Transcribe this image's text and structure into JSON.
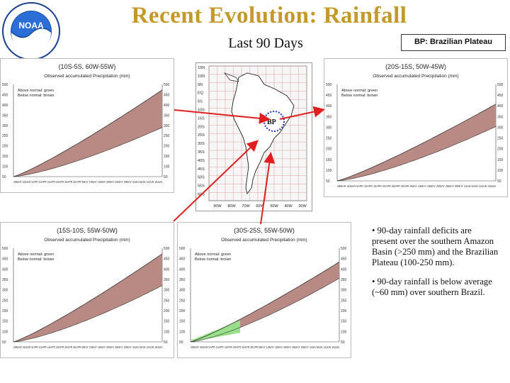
{
  "title": "Recent Evolution: Rainfall",
  "subtitle": "Last 90 Days",
  "legend_box": "BP: Brazilian Plateau",
  "logo_text": "NOAA",
  "map": {
    "label": "BP",
    "lat_labels": [
      "15N",
      "10N",
      "5N",
      "EQ",
      "5S",
      "10S",
      "15S",
      "20S",
      "25S",
      "30S",
      "35S",
      "40S",
      "45S",
      "50S",
      "55S",
      "60S"
    ],
    "lon_labels": [
      "90W",
      "80W",
      "70W",
      "60W",
      "50W",
      "40W",
      "30W"
    ]
  },
  "panels": [
    {
      "region": "(10S-5S, 60W-55W)",
      "subtitle": "Observed accumulated Precipitation (mm)",
      "legend_above": "Above normal: green",
      "legend_below": "Below normal: brown",
      "y_ticks": [
        "500",
        "450",
        "400",
        "350",
        "300",
        "250",
        "200",
        "150",
        "100",
        "50"
      ],
      "x_axis": "26MAR 31MAR 5APR 10APR 15APR 20APR 25APR 30APR 5MAY 10MAY 15MAY 20MAY 25MAY 30MAY 4JUN 9JUN 14JUN 19JUN"
    },
    {
      "region": "(20S-15S, 50W-45W)",
      "subtitle": "Observed accumulated Precipitation (mm)",
      "legend_above": "Above normal: green",
      "legend_below": "Below normal: brown",
      "y_ticks": [
        "500",
        "450",
        "400",
        "350",
        "300",
        "250",
        "200",
        "150",
        "100",
        "50"
      ],
      "x_axis": "26MAR 31MAR 5APR 10APR 15APR 20APR 25APR 30APR 5MAY 10MAY 15MAY 20MAY 25MAY 30MAY 4JUN 9JUN 14JUN 19JUN"
    },
    {
      "region": "(15S-10S, 55W-50W)",
      "subtitle": "Observed accumulated Precipitation (mm)",
      "legend_above": "Above normal: green",
      "legend_below": "Below normal: brown",
      "y_ticks": [
        "500",
        "450",
        "400",
        "350",
        "300",
        "250",
        "200",
        "150",
        "100",
        "50"
      ],
      "x_axis": "26MAR 31MAR 5APR 10APR 15APR 20APR 25APR 30APR 5MAY 10MAY 15MAY 20MAY 25MAY 30MAY 4JUN 9JUN 14JUN 19JUN"
    },
    {
      "region": "(30S-25S, 55W-50W)",
      "subtitle": "Observed accumulated Precipitation (mm)",
      "legend_above": "Above normal: green",
      "legend_below": "Below normal: brown",
      "y_ticks": [
        "500",
        "450",
        "400",
        "350",
        "300",
        "250",
        "200",
        "150",
        "100",
        "50"
      ],
      "x_axis": "26MAR 31MAR 5APR 10APR 15APR 20APR 25APR 30APR 5MAY 10MAY 15MAY 20MAY 25MAY 30MAY 4JUN 9JUN 14JUN 19JUN"
    }
  ],
  "bullets": [
    "• 90-day rainfall deficits are present over the southern Amazon Basin (>250 mm) and the Brazilian Plateau (100-250 mm).",
    "• 90-day rainfall is below average (~60 mm) over southern Brazil."
  ],
  "colors": {
    "title": "#c39a2a",
    "deficit": "#b98a84",
    "surplus": "#99e08a",
    "arrow": "#e02020"
  }
}
